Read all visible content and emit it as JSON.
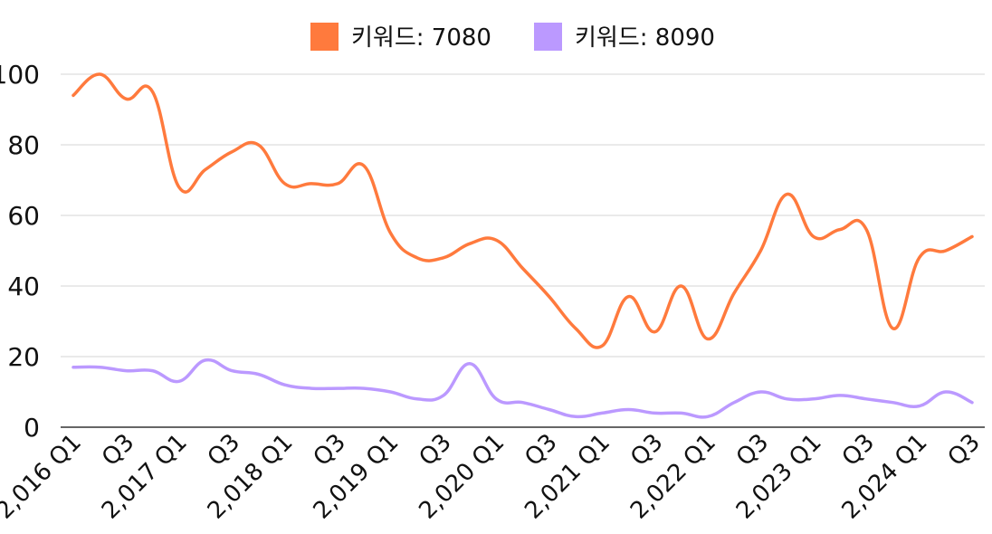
{
  "chart_data": {
    "type": "line",
    "title": "",
    "xlabel": "",
    "ylabel": "",
    "ylim": [
      0,
      100
    ],
    "yticks": [
      0,
      20,
      40,
      60,
      80,
      100
    ],
    "grid": true,
    "legend_position": "top",
    "x_tick_labels": [
      "2,016 Q1",
      "Q3",
      "2,017 Q1",
      "Q3",
      "2,018 Q1",
      "Q3",
      "2,019 Q1",
      "Q3",
      "2,020 Q1",
      "Q3",
      "2,021 Q1",
      "Q3",
      "2,022 Q1",
      "Q3",
      "2,023 Q1",
      "Q3",
      "2,024 Q1",
      "Q3"
    ],
    "categories": [
      "2016 Q1",
      "2016 Q2",
      "2016 Q3",
      "2016 Q4",
      "2017 Q1",
      "2017 Q2",
      "2017 Q3",
      "2017 Q4",
      "2018 Q1",
      "2018 Q2",
      "2018 Q3",
      "2018 Q4",
      "2019 Q1",
      "2019 Q2",
      "2019 Q3",
      "2019 Q4",
      "2020 Q1",
      "2020 Q2",
      "2020 Q3",
      "2020 Q4",
      "2021 Q1",
      "2021 Q2",
      "2021 Q3",
      "2021 Q4",
      "2022 Q1",
      "2022 Q2",
      "2022 Q3",
      "2022 Q4",
      "2023 Q1",
      "2023 Q2",
      "2023 Q3",
      "2023 Q4",
      "2024 Q1",
      "2024 Q2",
      "2024 Q3"
    ],
    "series": [
      {
        "name": "키워드: 7080",
        "color": "#FF7A3D",
        "values": [
          94,
          100,
          93,
          95,
          68,
          73,
          78,
          80,
          69,
          69,
          69,
          74,
          55,
          48,
          48,
          52,
          53,
          45,
          37,
          28,
          23,
          37,
          27,
          40,
          25,
          38,
          50,
          66,
          54,
          56,
          56,
          28,
          48,
          50,
          54
        ]
      },
      {
        "name": "키워드: 8090",
        "color": "#BB99FF",
        "values": [
          17,
          17,
          16,
          16,
          13,
          19,
          16,
          15,
          12,
          11,
          11,
          11,
          10,
          8,
          9,
          18,
          8,
          7,
          5,
          3,
          4,
          5,
          4,
          4,
          3,
          7,
          10,
          8,
          8,
          9,
          8,
          7,
          6,
          10,
          7
        ]
      }
    ]
  }
}
